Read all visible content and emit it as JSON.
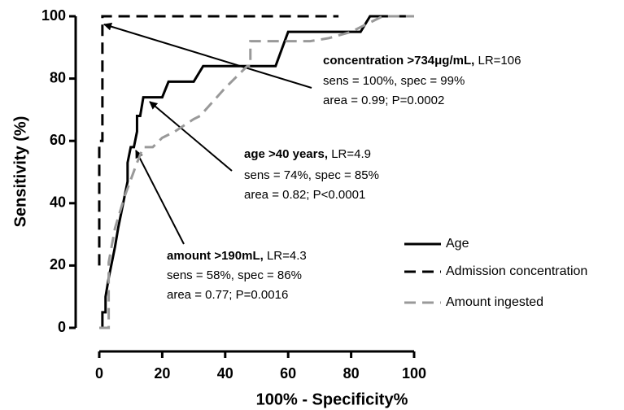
{
  "chart_data": {
    "type": "line",
    "xlabel": "100% - Specificity%",
    "ylabel": "Sensitivity (%)",
    "xlim": [
      0,
      100
    ],
    "xticks": [
      0,
      20,
      40,
      60,
      80,
      100
    ],
    "ylim": [
      0,
      100
    ],
    "yticks": [
      0,
      20,
      40,
      60,
      80,
      100
    ],
    "legend": "lower right",
    "series": [
      {
        "name": "Age",
        "color": "#000000",
        "dash": "solid",
        "x": [
          0,
          1,
          1,
          2,
          2,
          3,
          4,
          5,
          6,
          7,
          8,
          9,
          9,
          10,
          11,
          12,
          12,
          13,
          14,
          20,
          22,
          30,
          33,
          56,
          60,
          83,
          86,
          100
        ],
        "values": [
          0,
          0,
          5,
          5,
          10,
          16,
          21,
          26,
          32,
          37,
          42,
          47,
          53,
          58,
          58,
          63,
          68,
          68,
          74,
          74,
          79,
          79,
          84,
          84,
          95,
          95,
          100,
          100
        ]
      },
      {
        "name": "Admission concentration",
        "color": "#000000",
        "dash": "dashed",
        "x": [
          0,
          0,
          1,
          1,
          76
        ],
        "values": [
          20,
          60,
          60,
          100,
          100
        ]
      },
      {
        "name": "Amount ingested",
        "color": "#999999",
        "dash": "dashed",
        "x": [
          0,
          3,
          3,
          5,
          8,
          12,
          14,
          17,
          20,
          24,
          30,
          32,
          40,
          47,
          48,
          48,
          55,
          67,
          73,
          80,
          86,
          90,
          100
        ],
        "values": [
          0,
          0,
          21,
          32,
          42,
          53,
          58,
          58,
          61,
          63,
          67,
          68,
          77,
          84,
          84,
          92,
          92,
          92,
          93,
          95,
          98,
          100,
          100
        ]
      }
    ],
    "annotations": [
      {
        "title": "concentration >734μg/mL,",
        "lr": "LR=106",
        "lines": [
          "sens = 100%, spec = 99%",
          "area = 0.99; P=0.0002"
        ]
      },
      {
        "title": "age >40 years,",
        "lr": "LR=4.9",
        "lines": [
          "sens = 74%, spec = 85%",
          "area = 0.82; P<0.0001"
        ]
      },
      {
        "title": "amount >190mL,",
        "lr": "LR=4.3",
        "lines": [
          "sens = 58%, spec = 86%",
          "area = 0.77; P=0.0016"
        ]
      }
    ]
  }
}
